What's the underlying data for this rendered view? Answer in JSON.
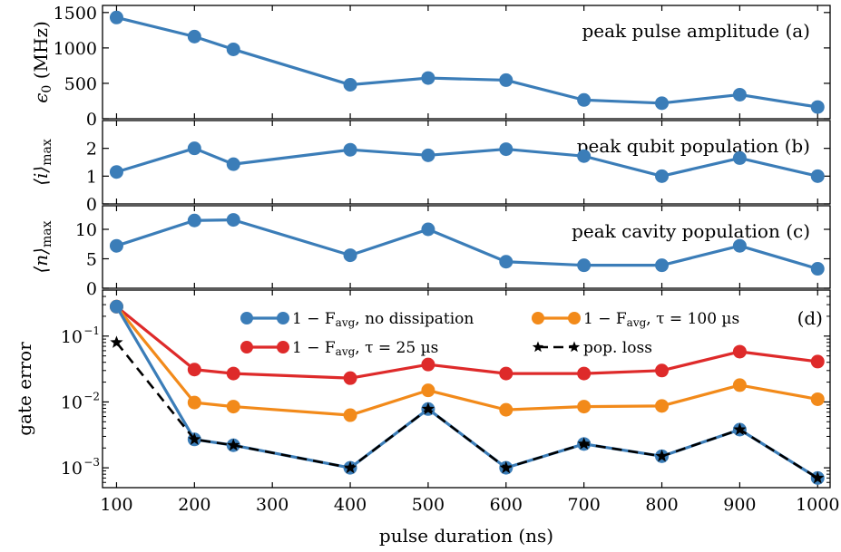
{
  "chart_data": [
    {
      "id": "a",
      "type": "line",
      "label": "peak pulse amplitude (a)",
      "ylabel": "ϵ0 (MHz)",
      "ylabel_main": "ϵ",
      "ylabel_sub": "0",
      "ylabel_unit": " (MHz)",
      "ylim": [
        0,
        1600
      ],
      "yticks": [
        0,
        500,
        1000,
        1500
      ],
      "x": [
        100,
        200,
        250,
        400,
        500,
        600,
        700,
        800,
        900,
        1000
      ],
      "series": [
        {
          "values": [
            1430,
            1160,
            980,
            480,
            575,
            545,
            265,
            220,
            340,
            165
          ],
          "color": "#3b7db8"
        }
      ]
    },
    {
      "id": "b",
      "type": "line",
      "label": "peak qubit population (b)",
      "ylabel": "⟨i⟩max",
      "ylabel_main": "⟨i⟩",
      "ylabel_sub": "max",
      "ylim": [
        0,
        3
      ],
      "yticks": [
        0,
        1,
        2
      ],
      "x": [
        100,
        200,
        250,
        400,
        500,
        600,
        700,
        800,
        900,
        1000
      ],
      "series": [
        {
          "values": [
            1.15,
            2.0,
            1.43,
            1.95,
            1.75,
            1.97,
            1.72,
            1.0,
            1.65,
            1.0
          ],
          "color": "#3b7db8"
        }
      ]
    },
    {
      "id": "c",
      "type": "line",
      "label": "peak cavity population (c)",
      "ylabel": "⟨n⟩max",
      "ylabel_main": "⟨n⟩",
      "ylabel_sub": "max",
      "ylim": [
        0,
        14
      ],
      "yticks": [
        0,
        5,
        10
      ],
      "x": [
        100,
        200,
        250,
        400,
        500,
        600,
        700,
        800,
        900,
        1000
      ],
      "series": [
        {
          "values": [
            7.2,
            11.5,
            11.6,
            5.6,
            10.0,
            4.5,
            3.9,
            3.9,
            7.2,
            3.3
          ],
          "color": "#3b7db8"
        }
      ]
    },
    {
      "id": "d",
      "type": "line",
      "label": "(d)",
      "ylabel": "gate error",
      "yscale": "log",
      "ylim": [
        0.0005,
        0.5
      ],
      "yticks": [
        0.001,
        0.01,
        0.1
      ],
      "ytick_labels": [
        "10",
        "10",
        "10"
      ],
      "ytick_exponents": [
        "−3",
        "−2",
        "−1"
      ],
      "xlabel": "pulse duration (ns)",
      "xticks": [
        100,
        200,
        300,
        400,
        500,
        600,
        700,
        800,
        900,
        1000
      ],
      "x": [
        100,
        200,
        250,
        400,
        500,
        600,
        700,
        800,
        900,
        1000
      ],
      "legend_placement": "top",
      "series": [
        {
          "name": "1 − Favg, no dissipation",
          "name_pre": "1 − F",
          "name_sub": "avg",
          "name_post": ", no dissipation",
          "color": "#3b7db8",
          "marker": "circle",
          "values": [
            0.28,
            0.0027,
            0.0022,
            0.001,
            0.0078,
            0.001,
            0.0023,
            0.0015,
            0.0038,
            0.0007
          ]
        },
        {
          "name": "1 − Favg, τ = 100 µs",
          "name_pre": "1 − F",
          "name_sub": "avg",
          "name_post": ", τ = 100 µs",
          "color": "#f28a1a",
          "marker": "circle",
          "values": [
            0.28,
            0.0098,
            0.0085,
            0.0063,
            0.015,
            0.0076,
            0.0085,
            0.0087,
            0.018,
            0.011
          ]
        },
        {
          "name": "1 − Favg, τ = 25 µs",
          "name_pre": "1 − F",
          "name_sub": "avg",
          "name_post": ", τ = 25 µs",
          "color": "#de2a2a",
          "marker": "circle",
          "values": [
            0.28,
            0.031,
            0.027,
            0.023,
            0.037,
            0.027,
            0.027,
            0.03,
            0.058,
            0.041
          ]
        },
        {
          "name": "pop. loss",
          "name_pre": "pop. loss",
          "name_sub": "",
          "name_post": "",
          "color": "#000000",
          "marker": "star",
          "dashed": true,
          "values": [
            0.08,
            0.0027,
            0.0022,
            0.001,
            0.0078,
            0.001,
            0.0023,
            0.0015,
            0.0038,
            0.0007
          ]
        }
      ]
    }
  ]
}
